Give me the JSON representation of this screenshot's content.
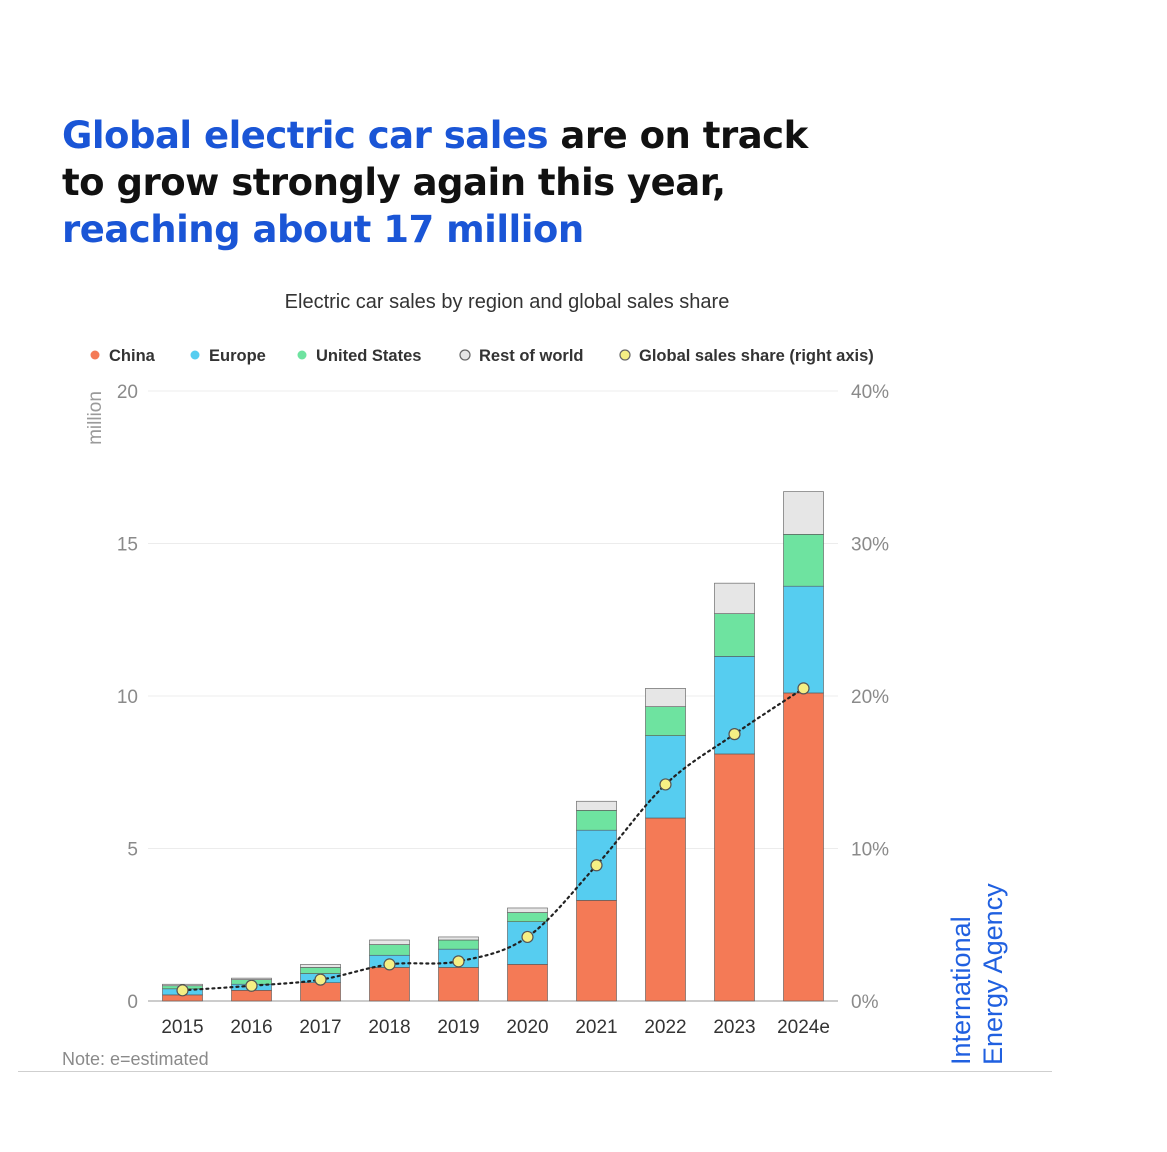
{
  "headline": {
    "part1": "Global electric car sales",
    "part2": " are on track to grow strongly again this year, ",
    "part3": "reaching about 17 million"
  },
  "colors": {
    "china": "#f47a56",
    "europe": "#56cdf0",
    "united_states": "#6ee3a0",
    "rest_of_world": "#e6e6e6",
    "share_point": "#f5ef84",
    "headline_accent": "#1a55d6"
  },
  "chart_data": {
    "type": "bar",
    "stacked": true,
    "title": "Electric car sales by region and global sales share",
    "categories": [
      "2015",
      "2016",
      "2017",
      "2018",
      "2019",
      "2020",
      "2021",
      "2022",
      "2023",
      "2024e"
    ],
    "ylabel": "million",
    "ylim": [
      0,
      20
    ],
    "yticks": [
      "0",
      "5",
      "10",
      "15",
      "20"
    ],
    "y2lim": [
      0,
      40
    ],
    "y2ticks": [
      "0%",
      "10%",
      "20%",
      "30%",
      "40%"
    ],
    "grid": true,
    "legend_position": "top",
    "series": [
      {
        "name": "China",
        "color_key": "china",
        "values": [
          0.2,
          0.35,
          0.6,
          1.1,
          1.1,
          1.2,
          3.3,
          6.0,
          8.1,
          10.1
        ]
      },
      {
        "name": "Europe",
        "color_key": "europe",
        "values": [
          0.2,
          0.2,
          0.3,
          0.4,
          0.6,
          1.4,
          2.3,
          2.7,
          3.2,
          3.5
        ]
      },
      {
        "name": "United States",
        "color_key": "united_states",
        "values": [
          0.1,
          0.15,
          0.2,
          0.35,
          0.3,
          0.3,
          0.65,
          0.95,
          1.4,
          1.7
        ]
      },
      {
        "name": "Rest of world",
        "color_key": "rest_of_world",
        "values": [
          0.05,
          0.05,
          0.1,
          0.15,
          0.1,
          0.15,
          0.3,
          0.6,
          1.0,
          1.4
        ]
      },
      {
        "name": "Global sales share (right axis)",
        "color_key": "share_point",
        "type": "line",
        "axis": "right",
        "values": [
          0.7,
          1.0,
          1.4,
          2.4,
          2.6,
          4.2,
          8.9,
          14.2,
          17.5,
          20.5
        ]
      }
    ],
    "note": "Note:  e=estimated"
  },
  "logo": {
    "line1": "International",
    "line2": "Energy Agency"
  }
}
